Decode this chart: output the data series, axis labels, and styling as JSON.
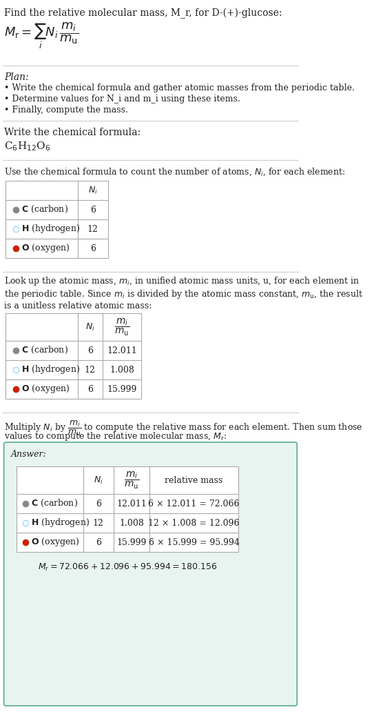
{
  "title_line": "Find the relative molecular mass, M_r, for D-(+)-glucose:",
  "formula_eq": "$M_\\mathrm{r} = \\sum_i N_i \\dfrac{m_i}{m_\\mathrm{u}}$",
  "plan_header": "Plan:",
  "plan_bullets": [
    "• Write the chemical formula and gather atomic masses from the periodic table.",
    "• Determine values for N_i and m_i using these items.",
    "• Finally, compute the mass."
  ],
  "step1_header": "Write the chemical formula:",
  "step1_formula": "C$_6$H$_{12}$O$_6$",
  "step2_header": "Use the chemical formula to count the number of atoms, $N_i$, for each element:",
  "table1_col_header": "$N_i$",
  "table1_rows": [
    {
      "symbol": "C",
      "name": "carbon",
      "color": "#888888",
      "filled": true,
      "Ni": "6"
    },
    {
      "symbol": "H",
      "name": "hydrogen",
      "color": "#aaddff",
      "filled": false,
      "Ni": "12"
    },
    {
      "symbol": "O",
      "name": "oxygen",
      "color": "#cc2200",
      "filled": true,
      "Ni": "6"
    }
  ],
  "step3_header": "Look up the atomic mass, $m_i$, in unified atomic mass units, u, for each element in\nthe periodic table. Since $m_i$ is divided by the atomic mass constant, $m_\\mathrm{u}$, the result\nis a unitless relative atomic mass:",
  "table2_col_headers": [
    "$N_i$",
    "$\\dfrac{m_i}{m_\\mathrm{u}}$"
  ],
  "table2_rows": [
    {
      "symbol": "C",
      "name": "carbon",
      "color": "#888888",
      "filled": true,
      "Ni": "6",
      "mi": "12.011"
    },
    {
      "symbol": "H",
      "name": "hydrogen",
      "color": "#aaddff",
      "filled": false,
      "Ni": "12",
      "mi": "1.008"
    },
    {
      "symbol": "O",
      "name": "oxygen",
      "color": "#cc2200",
      "filled": true,
      "Ni": "6",
      "mi": "15.999"
    }
  ],
  "step4_header": "Multiply $N_i$ by $\\dfrac{m_i}{m_\\mathrm{u}}$ to compute the relative mass for each element. Then sum those\nvalues to compute the relative molecular mass, $M_\\mathrm{r}$:",
  "answer_label": "Answer:",
  "table3_col_headers": [
    "$N_i$",
    "$\\dfrac{m_i}{m_\\mathrm{u}}$",
    "relative mass"
  ],
  "table3_rows": [
    {
      "symbol": "C",
      "name": "carbon",
      "color": "#888888",
      "filled": true,
      "Ni": "6",
      "mi": "12.011",
      "rel": "6 × 12.011 = 72.066"
    },
    {
      "symbol": "H",
      "name": "hydrogen",
      "color": "#aaddff",
      "filled": false,
      "Ni": "12",
      "mi": "1.008",
      "rel": "12 × 1.008 = 12.096"
    },
    {
      "symbol": "O",
      "name": "oxygen",
      "color": "#cc2200",
      "filled": true,
      "Ni": "6",
      "mi": "15.999",
      "rel": "6 × 15.999 = 95.994"
    }
  ],
  "final_answer": "$M_\\mathrm{r} = 72.066 + 12.096 + 95.994 = 180.156$",
  "bg_color": "#ffffff",
  "text_color": "#222222",
  "separator_color": "#cccccc",
  "answer_box_color": "#e8f4f0",
  "answer_box_edge": "#5aaa88"
}
